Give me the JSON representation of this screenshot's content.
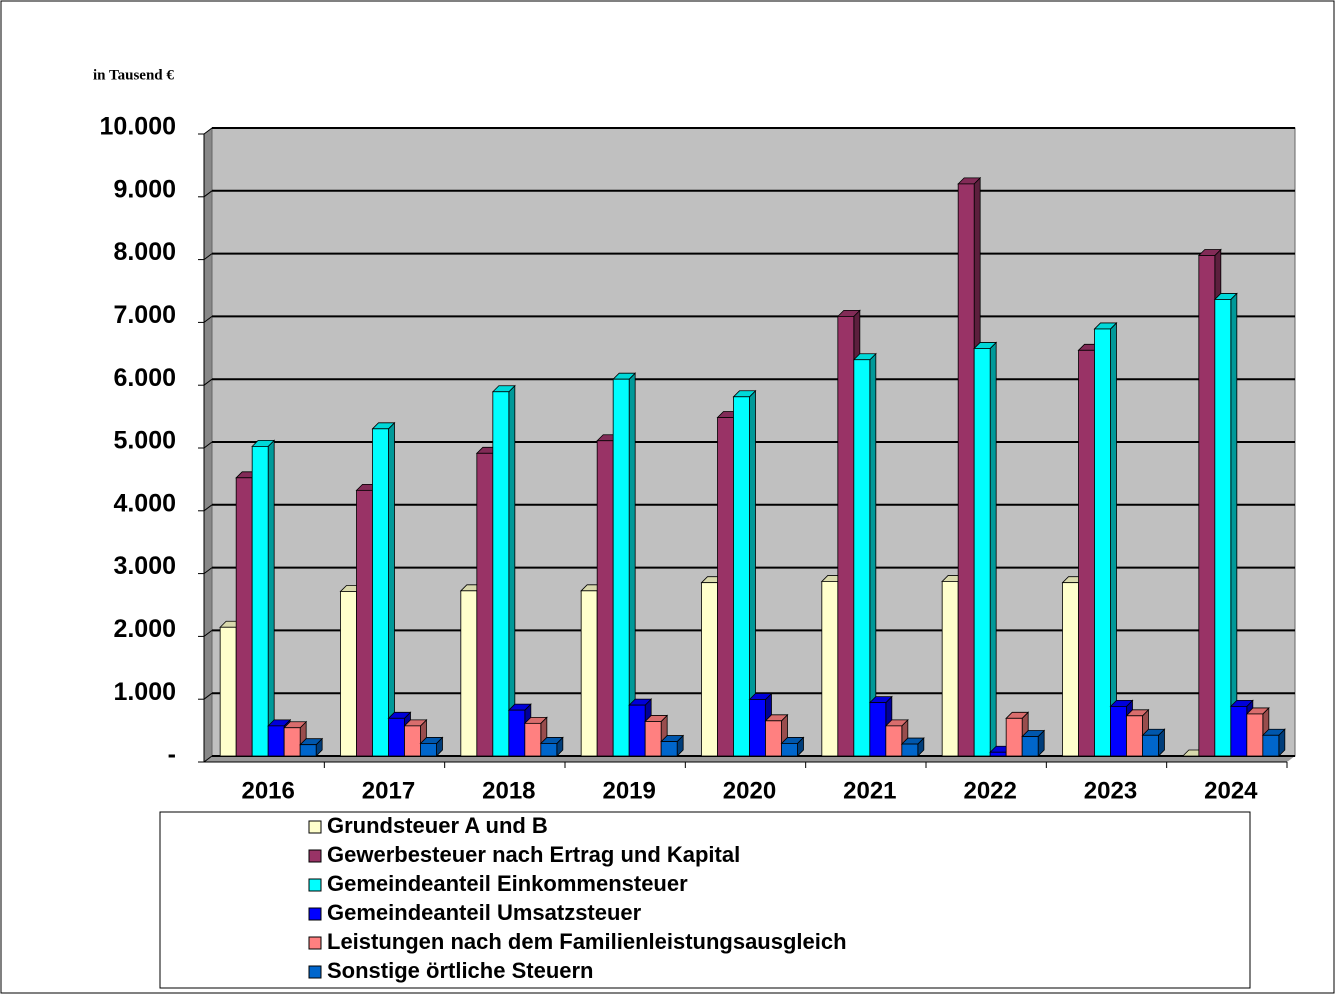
{
  "chart_data": {
    "type": "bar3d",
    "y_axis_label": "in Tausend €",
    "categories": [
      "2016",
      "2017",
      "2018",
      "2019",
      "2020",
      "2021",
      "2022",
      "2023",
      "2024"
    ],
    "series": [
      {
        "name": "Grundsteuer A und B",
        "color": "#ffffcc",
        "values": [
          2050,
          2620,
          2630,
          2630,
          2760,
          2780,
          2780,
          2760,
          0
        ]
      },
      {
        "name": "Gewerbesteuer nach Ertrag und Kapital",
        "color": "#993366",
        "values": [
          4430,
          4230,
          4820,
          5020,
          5390,
          7000,
          9110,
          6460,
          7970
        ]
      },
      {
        "name": "Gemeindeanteil Einkommensteuer",
        "color": "#00ffff",
        "values": [
          4930,
          5210,
          5800,
          6000,
          5720,
          6310,
          6490,
          6800,
          7270
        ]
      },
      {
        "name": "Gemeindeanteil Umsatzsteuer",
        "color": "#0000ff",
        "values": [
          480,
          600,
          730,
          810,
          900,
          850,
          60,
          790,
          790
        ]
      },
      {
        "name": "Leistungen nach dem Familienleistungsausgleich",
        "color": "#ff8080",
        "values": [
          450,
          480,
          520,
          550,
          560,
          480,
          600,
          640,
          670
        ]
      },
      {
        "name": "Sonstige örtliche Steuern",
        "color": "#0066cc",
        "values": [
          180,
          200,
          200,
          230,
          200,
          190,
          310,
          330,
          330
        ]
      }
    ],
    "ylim": [
      0,
      10000
    ],
    "yticks": [
      {
        "value": 0,
        "label": "-"
      },
      {
        "value": 1000,
        "label": "1.000"
      },
      {
        "value": 2000,
        "label": "2.000"
      },
      {
        "value": 3000,
        "label": "3.000"
      },
      {
        "value": 4000,
        "label": "4.000"
      },
      {
        "value": 5000,
        "label": "5.000"
      },
      {
        "value": 6000,
        "label": "6.000"
      },
      {
        "value": 7000,
        "label": "7.000"
      },
      {
        "value": 8000,
        "label": "8.000"
      },
      {
        "value": 9000,
        "label": "9.000"
      },
      {
        "value": 10000,
        "label": "10.000"
      }
    ],
    "grid": true
  }
}
